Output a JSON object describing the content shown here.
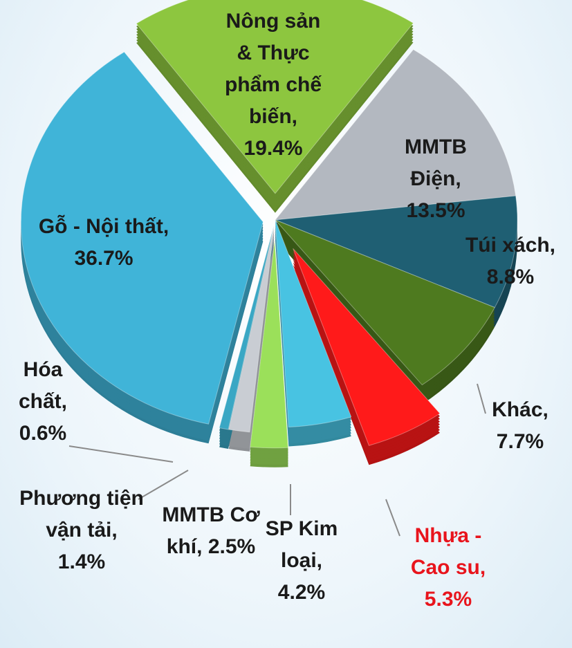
{
  "chart_data": {
    "type": "pie",
    "categories": [
      "Nông sản & Thực phẩm chế biến,",
      "MMTB Điện,",
      "Túi xách,",
      "Khác,",
      "Nhựa - Cao su,",
      "SP Kim loại,",
      "MMTB Cơ khí,",
      "Phương tiện vận tải,",
      "Hóa chất,",
      "Gỗ - Nội thất,"
    ],
    "values": [
      19.4,
      13.5,
      8.8,
      7.7,
      5.3,
      4.2,
      2.5,
      1.4,
      0.6,
      36.7
    ],
    "value_labels": [
      "19.4%",
      "13.5%",
      "8.8%",
      "7.7%",
      "5.3%",
      "4.2%",
      "2.5%",
      "1.4%",
      "0.6%",
      "36.7%"
    ],
    "colors": [
      "#8dc63f",
      "#b3b8c0",
      "#1f5f73",
      "#4e7a1f",
      "#ff1a1a",
      "#48c3e2",
      "#9be05a",
      "#c9cdd3",
      "#3aa7c4",
      "#40b4d8"
    ]
  }
}
